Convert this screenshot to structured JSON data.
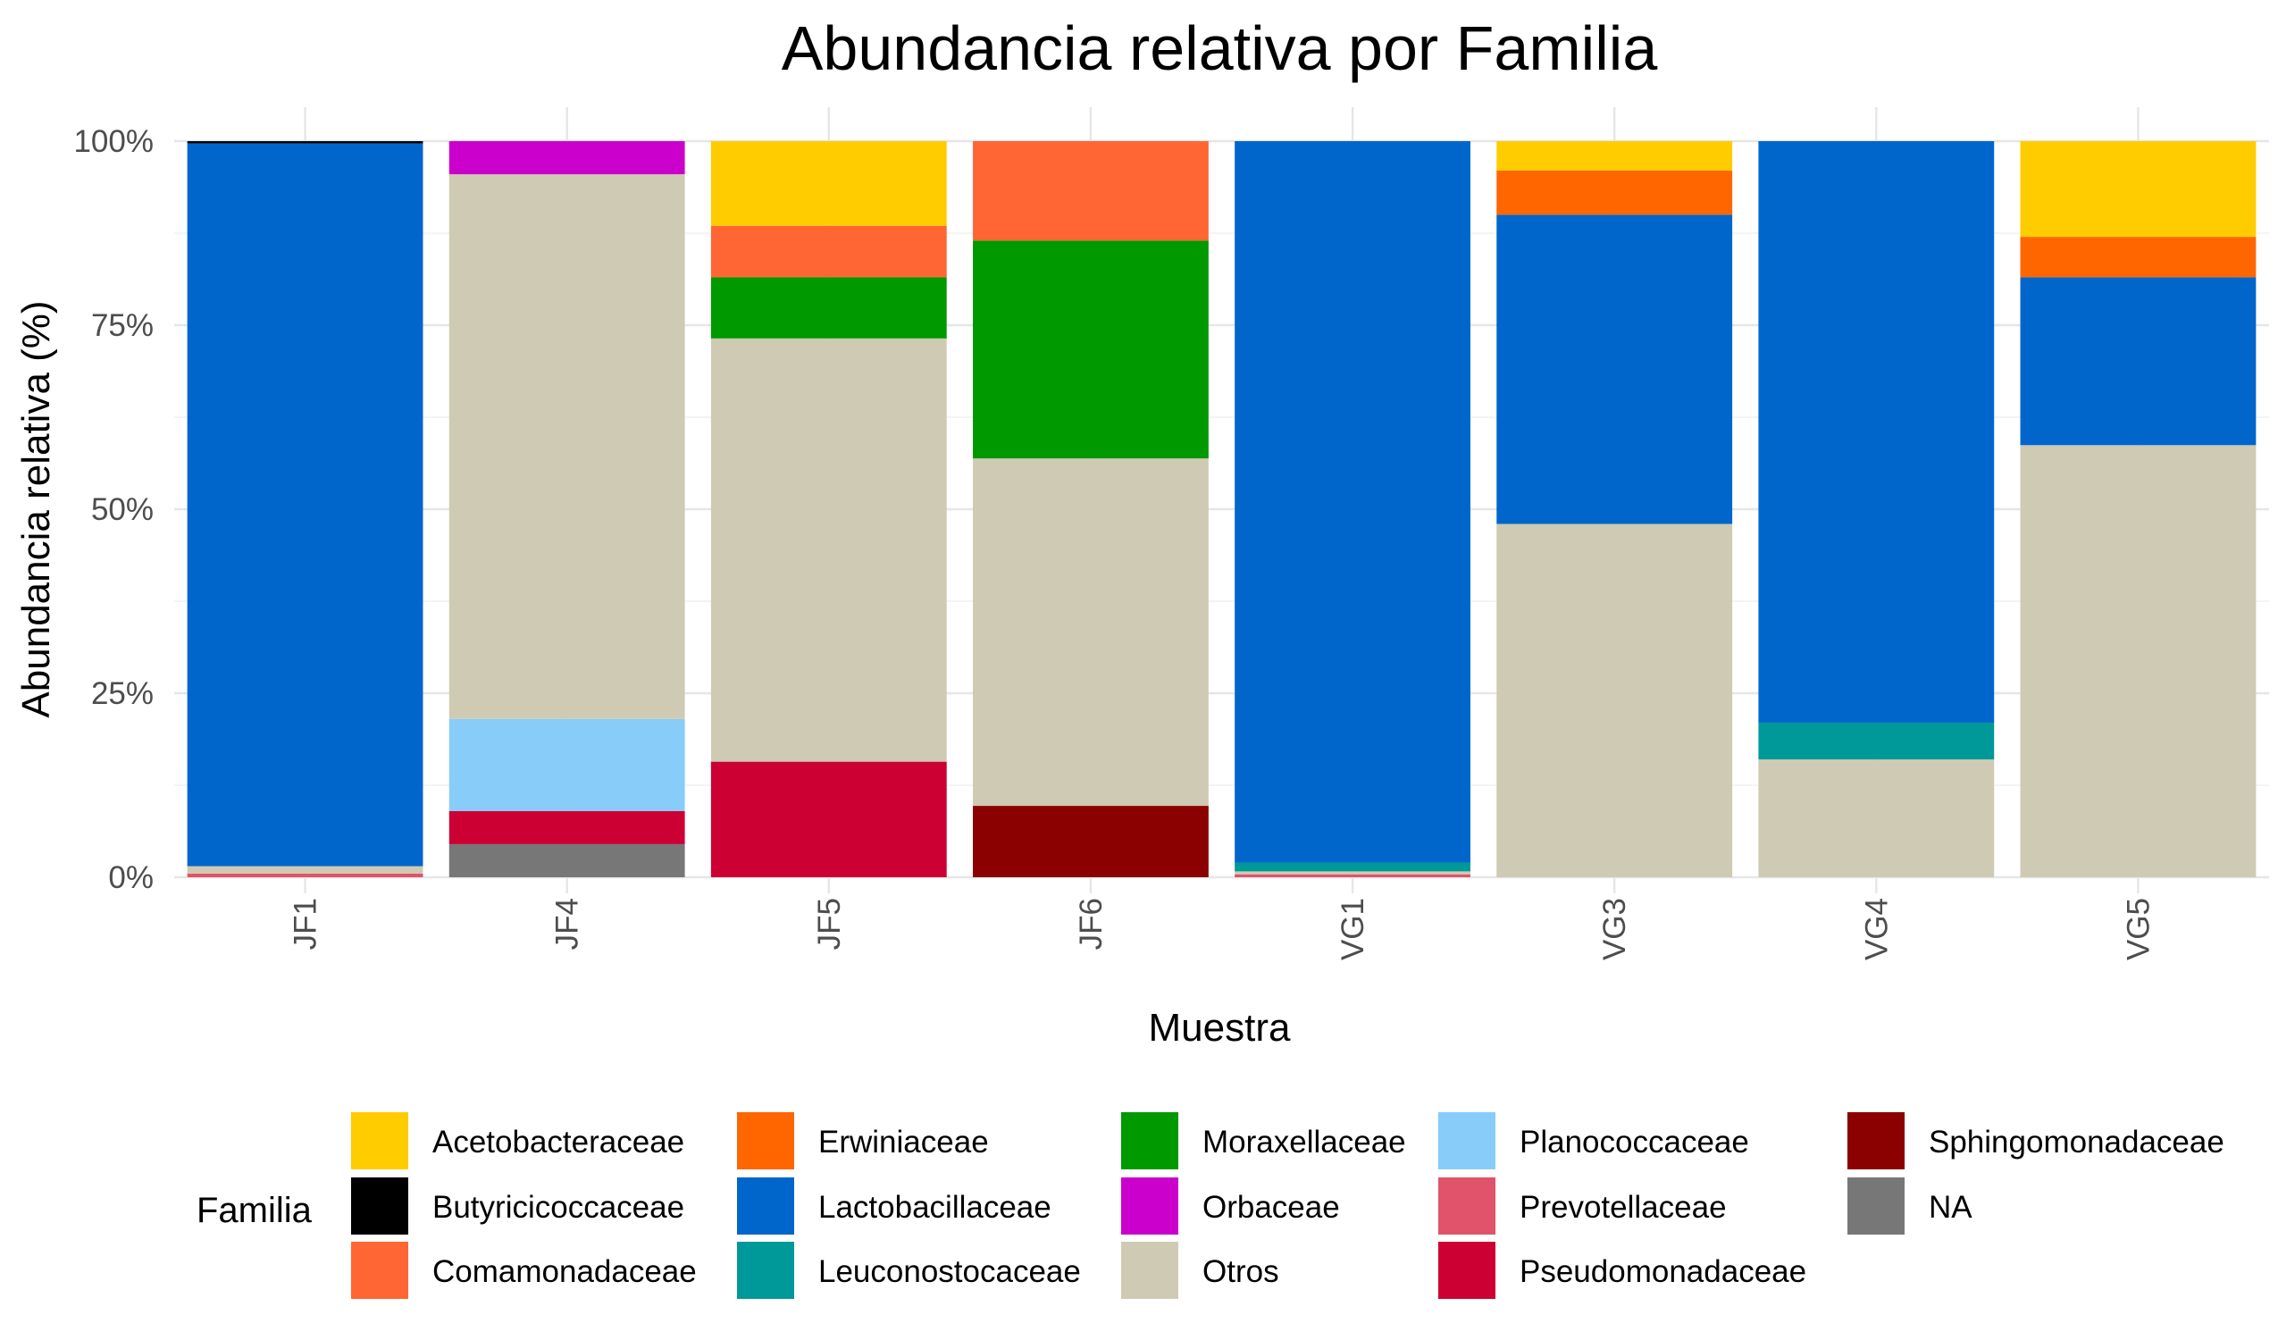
{
  "chart_data": {
    "type": "bar",
    "stacked": true,
    "title": "Abundancia relativa por Familia",
    "xlabel": "Muestra",
    "ylabel": "Abundancia relativa (%)",
    "ylim": [
      0,
      100
    ],
    "yticks": [
      "0%",
      "25%",
      "50%",
      "75%",
      "100%"
    ],
    "ytick_values": [
      0,
      25,
      50,
      75,
      100
    ],
    "grid": true,
    "legend_title": "Familia",
    "legend_position": "bottom",
    "categories": [
      "JF1",
      "JF4",
      "JF5",
      "JF6",
      "VG1",
      "VG3",
      "VG4",
      "VG5"
    ],
    "stack_order": [
      "NA",
      "Sphingomonadaceae",
      "Pseudomonadaceae",
      "Prevotellaceae",
      "Planococcaceae",
      "Otros",
      "Orbaceae",
      "Moraxellaceae",
      "Leuconostocaceae",
      "Lactobacillaceae",
      "Erwiniaceae",
      "Comamonadaceae",
      "Butyricicoccaceae",
      "Acetobacteraceae"
    ],
    "series": [
      {
        "name": "Acetobacteraceae",
        "color": "#FFCC00",
        "values": [
          0,
          0,
          11.5,
          0,
          0,
          4,
          0,
          13
        ]
      },
      {
        "name": "Butyricicoccaceae",
        "color": "#000000",
        "values": [
          0.3,
          0,
          0,
          0,
          0,
          0,
          0,
          0
        ]
      },
      {
        "name": "Comamonadaceae",
        "color": "#FF6633",
        "values": [
          0,
          0,
          7,
          13.5,
          0,
          0,
          0,
          0
        ]
      },
      {
        "name": "Erwiniaceae",
        "color": "#FF6600",
        "values": [
          0,
          0,
          0,
          0,
          0,
          6,
          0,
          5.5
        ]
      },
      {
        "name": "Lactobacillaceae",
        "color": "#0066CC",
        "values": [
          98.2,
          0,
          0,
          0,
          98,
          42,
          79,
          22.8
        ]
      },
      {
        "name": "Leuconostocaceae",
        "color": "#009999",
        "values": [
          0,
          0,
          0,
          0,
          1.2,
          0,
          5,
          0
        ]
      },
      {
        "name": "Moraxellaceae",
        "color": "#009900",
        "values": [
          0,
          0,
          8.3,
          29.6,
          0,
          0,
          0,
          0
        ]
      },
      {
        "name": "Orbaceae",
        "color": "#CC00CC",
        "values": [
          0,
          4.5,
          0,
          0,
          0,
          0,
          0,
          0
        ]
      },
      {
        "name": "Otros",
        "color": "#CFCAB3",
        "values": [
          1,
          74,
          57.5,
          47.2,
          0.4,
          48,
          16,
          58.7
        ]
      },
      {
        "name": "Planococcaceae",
        "color": "#88CCF9",
        "values": [
          0,
          12.5,
          0,
          0,
          0,
          0,
          0,
          0
        ]
      },
      {
        "name": "Prevotellaceae",
        "color": "#E0536A",
        "values": [
          0.5,
          0,
          0,
          0,
          0.4,
          0,
          0,
          0
        ]
      },
      {
        "name": "Pseudomonadaceae",
        "color": "#CC0033",
        "values": [
          0,
          4.5,
          15.7,
          0,
          0,
          0,
          0,
          0
        ]
      },
      {
        "name": "Sphingomonadaceae",
        "color": "#8B0000",
        "values": [
          0,
          0,
          0,
          9.7,
          0,
          0,
          0,
          0
        ]
      },
      {
        "name": "NA",
        "color": "#777777",
        "values": [
          0,
          4.5,
          0,
          0,
          0,
          0,
          0,
          0
        ]
      }
    ]
  }
}
